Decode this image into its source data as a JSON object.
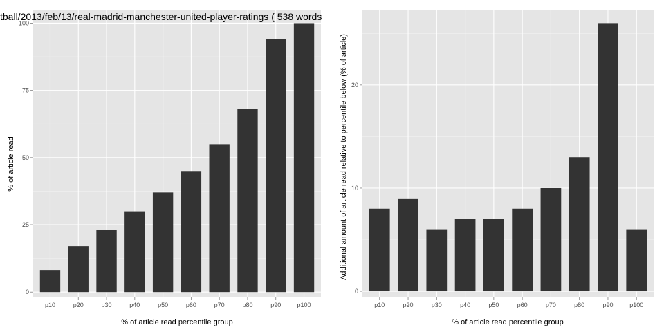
{
  "chart_data": [
    {
      "type": "bar",
      "title": "tball/2013/feb/13/real-madrid-manchester-united-player-ratings ( 538 words",
      "xlabel": "% of article read percentile group",
      "ylabel": "% of article read",
      "categories": [
        "p10",
        "p20",
        "p30",
        "p40",
        "p50",
        "p60",
        "p70",
        "p80",
        "p90",
        "p100"
      ],
      "values": [
        8,
        17,
        23,
        30,
        37,
        45,
        55,
        68,
        94,
        100
      ],
      "yticks": [
        0,
        25,
        50,
        75,
        100
      ],
      "ylim": [
        -2,
        105
      ],
      "bar_color": "#333333",
      "grid": true
    },
    {
      "type": "bar",
      "title": "",
      "xlabel": "% of article read percentile group",
      "ylabel": "Additional amount of article read relative to percentile below (% of article)",
      "categories": [
        "p10",
        "p20",
        "p30",
        "p40",
        "p50",
        "p60",
        "p70",
        "p80",
        "p90",
        "p100"
      ],
      "values": [
        8,
        9,
        6,
        7,
        7,
        8,
        10,
        13,
        26,
        6
      ],
      "yticks": [
        0,
        10,
        20
      ],
      "ylim": [
        -0.6,
        27.3
      ],
      "bar_color": "#333333",
      "grid": true
    }
  ]
}
